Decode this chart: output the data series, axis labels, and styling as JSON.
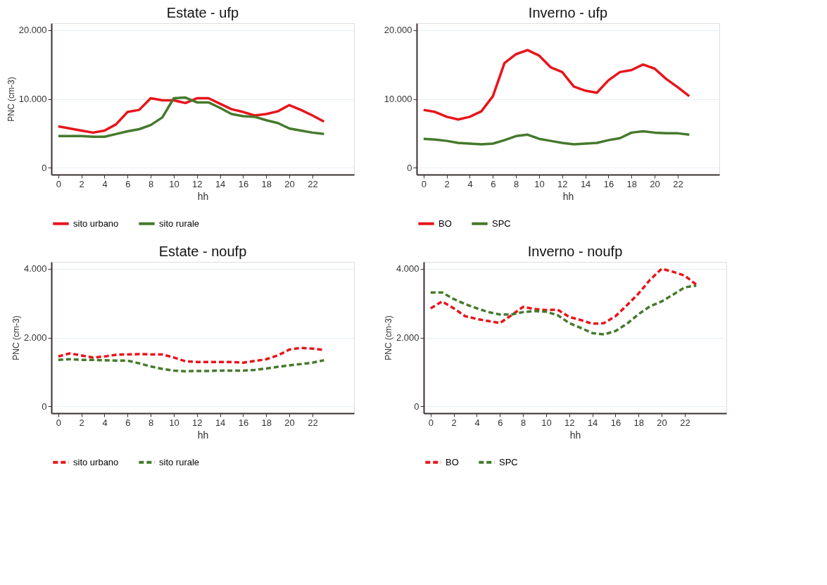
{
  "chart_data": [
    {
      "type": "line",
      "title": "Estate - ufp",
      "xlabel": "hh",
      "ylabel": "PNC (cm-3)",
      "x": [
        0,
        1,
        2,
        3,
        4,
        5,
        6,
        7,
        8,
        9,
        10,
        11,
        12,
        13,
        14,
        15,
        16,
        17,
        18,
        19,
        20,
        21,
        22,
        23
      ],
      "xlim": [
        -0.6,
        25.6
      ],
      "xticks": [
        0,
        2,
        4,
        6,
        8,
        10,
        12,
        14,
        16,
        18,
        20,
        22
      ],
      "ylim": [
        -1000,
        21000
      ],
      "yticks": [
        0,
        {
          "value": 10000,
          "label": "10.000"
        },
        {
          "value": 20000,
          "label": "20.000"
        }
      ],
      "grid": "y",
      "legend": "bottom",
      "line_style": "solid",
      "marker": "none",
      "series": [
        {
          "name": "sito urbano",
          "color": "#e8141b",
          "values": [
            6000,
            5700,
            5400,
            5100,
            5400,
            6300,
            8100,
            8400,
            10100,
            9800,
            9800,
            9400,
            10100,
            10100,
            9300,
            8500,
            8100,
            7600,
            7800,
            8200,
            9100,
            8400,
            7600,
            6700
          ]
        },
        {
          "name": "sito rurale",
          "color": "#457a2c",
          "values": [
            4600,
            4600,
            4600,
            4500,
            4500,
            4900,
            5300,
            5600,
            6200,
            7300,
            10100,
            10200,
            9500,
            9500,
            8700,
            7800,
            7500,
            7400,
            6900,
            6500,
            5700,
            5400,
            5100,
            4900
          ]
        }
      ]
    },
    {
      "type": "line",
      "title": "Inverno - ufp",
      "xlabel": "hh",
      "x": [
        0,
        1,
        2,
        3,
        4,
        5,
        6,
        7,
        8,
        9,
        10,
        11,
        12,
        13,
        14,
        15,
        16,
        17,
        18,
        19,
        20,
        21,
        22,
        23
      ],
      "xlim": [
        -0.6,
        25.6
      ],
      "xticks": [
        0,
        2,
        4,
        6,
        8,
        10,
        12,
        14,
        16,
        18,
        20,
        22
      ],
      "ylim": [
        -1000,
        21000
      ],
      "yticks": [
        0,
        {
          "value": 10000,
          "label": "10.000"
        },
        {
          "value": 20000,
          "label": "20.000"
        }
      ],
      "grid": "y",
      "legend": "bottom",
      "line_style": "solid",
      "marker": "none",
      "series": [
        {
          "name": "BO",
          "color": "#e8141b",
          "values": [
            8400,
            8100,
            7400,
            7000,
            7400,
            8200,
            10400,
            15200,
            16500,
            17100,
            16300,
            14600,
            13900,
            11800,
            11200,
            10900,
            12700,
            13900,
            14200,
            15000,
            14400,
            12900,
            11700,
            10400
          ]
        },
        {
          "name": "SPC",
          "color": "#457a2c",
          "values": [
            4200,
            4100,
            3900,
            3600,
            3500,
            3400,
            3500,
            4000,
            4600,
            4800,
            4200,
            3900,
            3600,
            3400,
            3500,
            3600,
            4000,
            4300,
            5100,
            5300,
            5100,
            5000,
            5000,
            4800
          ]
        }
      ]
    },
    {
      "type": "line",
      "title": "Estate - noufp",
      "xlabel": "hh",
      "ylabel": "PNC (cm-3)",
      "x": [
        0,
        1,
        2,
        3,
        4,
        5,
        6,
        7,
        8,
        9,
        10,
        11,
        12,
        13,
        14,
        15,
        16,
        17,
        18,
        19,
        20,
        21,
        22,
        23
      ],
      "xlim": [
        -0.6,
        25.6
      ],
      "xticks": [
        0,
        2,
        4,
        6,
        8,
        10,
        12,
        14,
        16,
        18,
        20,
        22
      ],
      "ylim": [
        -200,
        4200
      ],
      "yticks": [
        0,
        {
          "value": 2000,
          "label": "2.000"
        },
        {
          "value": 4000,
          "label": "4.000"
        }
      ],
      "grid": "y",
      "legend": "bottom",
      "line_style": "dashed",
      "marker": "none",
      "series": [
        {
          "name": "sito urbano",
          "color": "#e8141b",
          "values": [
            1450,
            1540,
            1480,
            1420,
            1450,
            1500,
            1510,
            1520,
            1510,
            1510,
            1420,
            1310,
            1290,
            1290,
            1290,
            1290,
            1270,
            1320,
            1370,
            1480,
            1650,
            1700,
            1680,
            1640
          ]
        },
        {
          "name": "sito rurale",
          "color": "#457a2c",
          "values": [
            1350,
            1370,
            1350,
            1350,
            1340,
            1330,
            1330,
            1250,
            1160,
            1090,
            1040,
            1020,
            1030,
            1030,
            1040,
            1040,
            1040,
            1060,
            1100,
            1150,
            1190,
            1230,
            1270,
            1340
          ]
        }
      ]
    },
    {
      "type": "line",
      "title": "Inverno - noufp",
      "xlabel": "hh",
      "ylabel": "PNC (cm-3)",
      "x": [
        0,
        1,
        2,
        3,
        4,
        5,
        6,
        7,
        8,
        9,
        10,
        11,
        12,
        13,
        14,
        15,
        16,
        17,
        18,
        19,
        20,
        21,
        22,
        23
      ],
      "xlim": [
        -0.6,
        25.6
      ],
      "xticks": [
        0,
        2,
        4,
        6,
        8,
        10,
        12,
        14,
        16,
        18,
        20,
        22
      ],
      "ylim": [
        -200,
        4200
      ],
      "yticks": [
        0,
        {
          "value": 2000,
          "label": "2.000"
        },
        {
          "value": 4000,
          "label": "4.000"
        }
      ],
      "grid": "y",
      "legend": "bottom",
      "line_style": "dashed",
      "marker": "none",
      "series": [
        {
          "name": "BO",
          "color": "#e8141b",
          "values": [
            2850,
            3050,
            2850,
            2620,
            2540,
            2480,
            2420,
            2650,
            2890,
            2830,
            2800,
            2810,
            2600,
            2510,
            2400,
            2420,
            2620,
            2940,
            3280,
            3680,
            4000,
            3910,
            3800,
            3540
          ]
        },
        {
          "name": "SPC",
          "color": "#457a2c",
          "values": [
            3310,
            3310,
            3120,
            2970,
            2850,
            2740,
            2670,
            2670,
            2740,
            2770,
            2750,
            2650,
            2420,
            2280,
            2130,
            2090,
            2190,
            2400,
            2680,
            2910,
            3050,
            3250,
            3460,
            3510
          ]
        }
      ]
    }
  ]
}
